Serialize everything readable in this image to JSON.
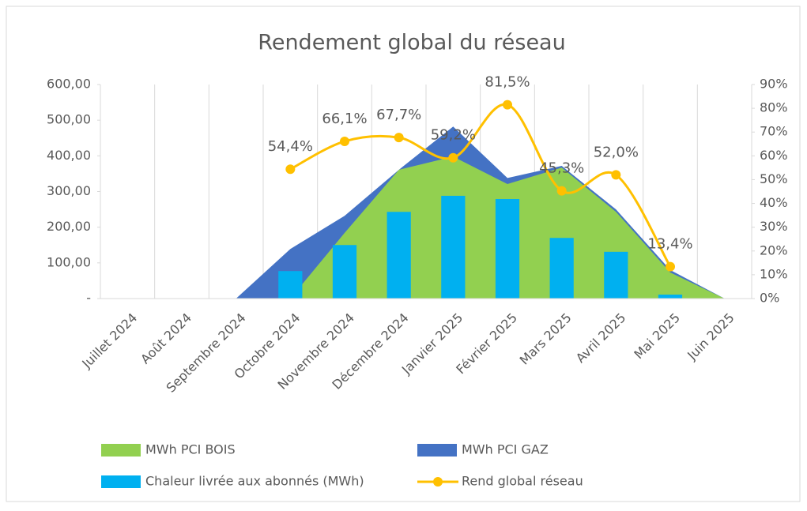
{
  "chart_data": {
    "type": "combo",
    "title": "Rendement global du réseau",
    "categories": [
      "Juillet 2024",
      "Août 2024",
      "Septembre 2024",
      "Octobre 2024",
      "Novembre 2024",
      "Décembre 2024",
      "Janvier 2025",
      "Février 2025",
      "Mars 2025",
      "Avril 2025",
      "Mai 2025",
      "Juin 2025"
    ],
    "series": [
      {
        "name": "MWh PCI GAZ",
        "kind": "area",
        "color": "#4472c4",
        "values": [
          0,
          0,
          0,
          139,
          232,
          361,
          482,
          338,
          372,
          250,
          80,
          0
        ]
      },
      {
        "name": "MWh PCI BOIS",
        "kind": "area",
        "color": "#92d050",
        "values": [
          0,
          0,
          0,
          0,
          184,
          361,
          398,
          321,
          367,
          243,
          73,
          0
        ]
      },
      {
        "name": "Chaleur livrée aux abonnés (MWh)",
        "kind": "bar",
        "color": "#00b0f0",
        "values": [
          null,
          null,
          null,
          77,
          150,
          243,
          288,
          279,
          170,
          131,
          11,
          null
        ]
      },
      {
        "name": "Rend global réseau",
        "kind": "line",
        "axis": "y2",
        "color": "#ffc000",
        "values": [
          null,
          null,
          null,
          54.4,
          66.1,
          67.7,
          59.2,
          81.5,
          45.3,
          52.0,
          13.4,
          null
        ],
        "value_labels": [
          null,
          null,
          null,
          "54,4%",
          "66,1%",
          "67,7%",
          "59,2%",
          "81,5%",
          "45,3%",
          "52,0%",
          "13,4%",
          null
        ]
      }
    ],
    "ylim": [
      0,
      600
    ],
    "yticks": [
      {
        "value": 0,
        "label": "-"
      },
      {
        "value": 100,
        "label": "100,00"
      },
      {
        "value": 200,
        "label": "200,00"
      },
      {
        "value": 300,
        "label": "300,00"
      },
      {
        "value": 400,
        "label": "400,00"
      },
      {
        "value": 500,
        "label": "500,00"
      },
      {
        "value": 600,
        "label": "600,00"
      }
    ],
    "y2lim": [
      0,
      90
    ],
    "y2ticks": [
      {
        "value": 0,
        "label": "0%"
      },
      {
        "value": 10,
        "label": "10%"
      },
      {
        "value": 20,
        "label": "20%"
      },
      {
        "value": 30,
        "label": "30%"
      },
      {
        "value": 40,
        "label": "40%"
      },
      {
        "value": 50,
        "label": "50%"
      },
      {
        "value": 60,
        "label": "60%"
      },
      {
        "value": 70,
        "label": "70%"
      },
      {
        "value": 80,
        "label": "80%"
      },
      {
        "value": 90,
        "label": "90%"
      }
    ],
    "legend_order": [
      1,
      0,
      2,
      3
    ]
  }
}
